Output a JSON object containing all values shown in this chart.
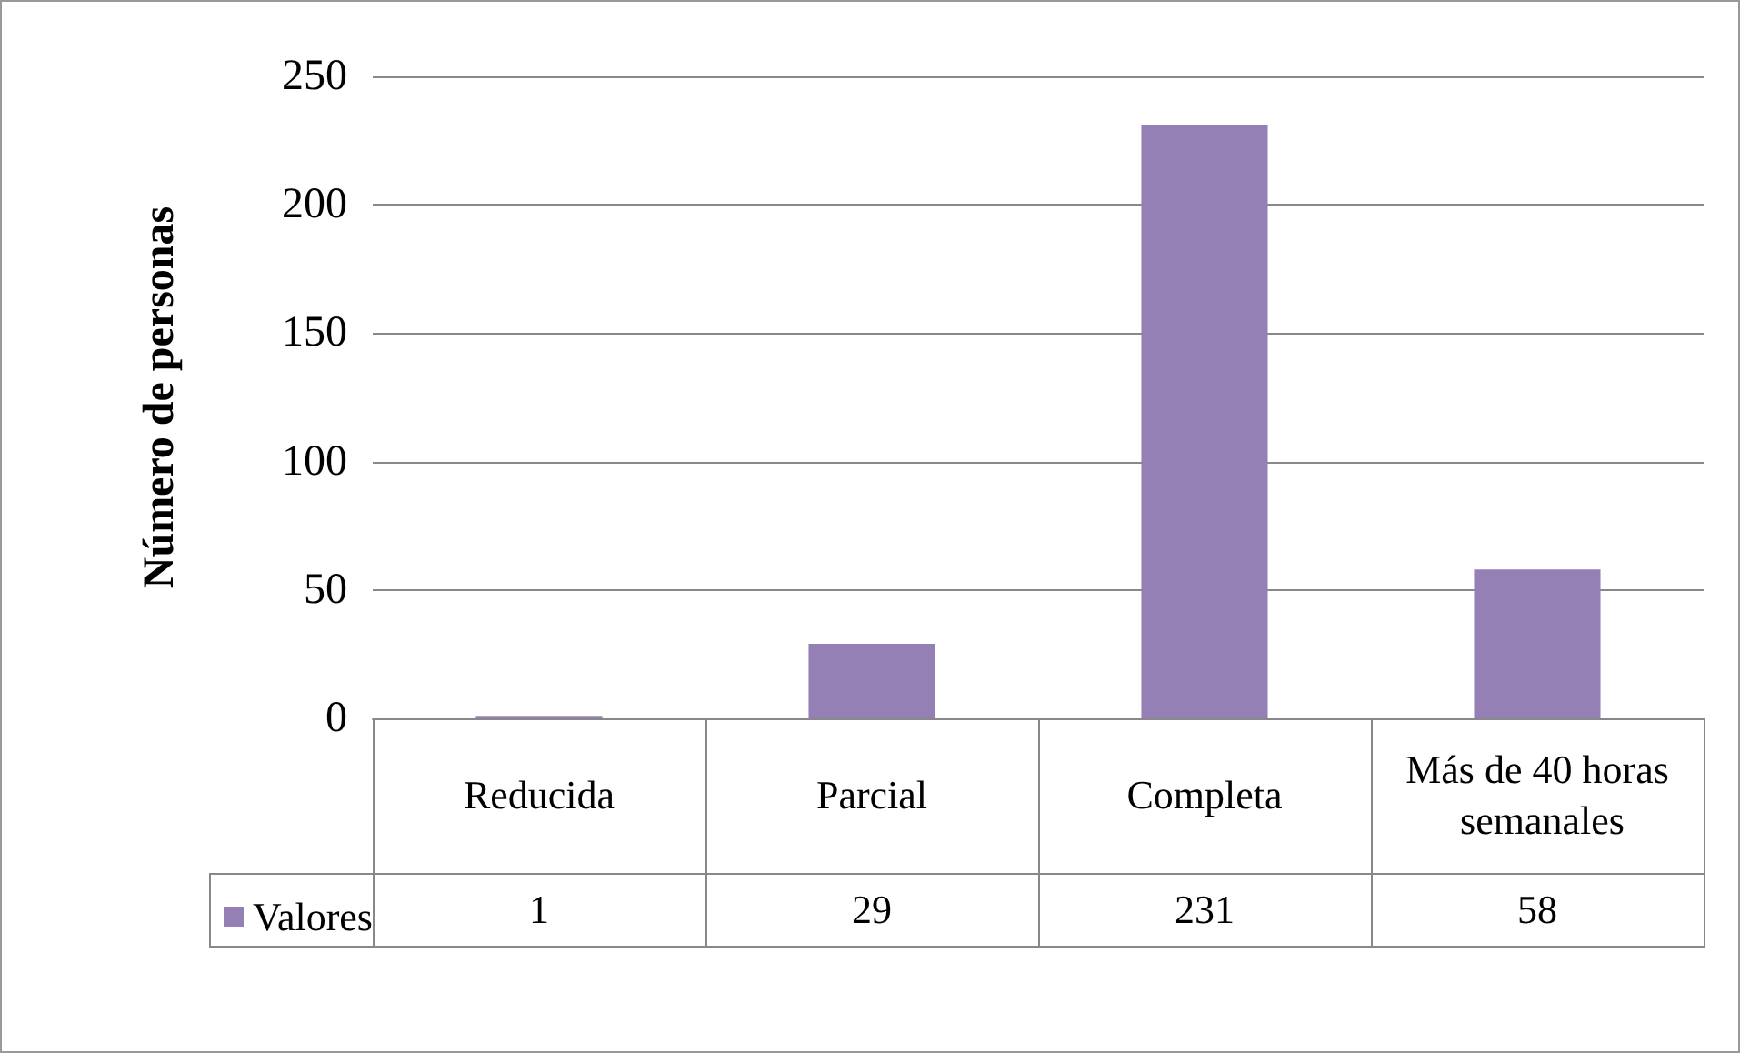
{
  "chart_data": {
    "type": "bar",
    "ylabel": "Número de personas",
    "categories": [
      "Reducida",
      "Parcial",
      "Completa",
      "Más de 40 horas semanales"
    ],
    "series": [
      {
        "name": "Valores",
        "color": "#9480b4",
        "values": [
          1,
          29,
          231,
          58
        ]
      }
    ],
    "ylim": [
      0,
      250
    ],
    "yticks": [
      0,
      50,
      100,
      150,
      200,
      250
    ],
    "grid": "y",
    "legend": "bottom left",
    "data_labels": true
  }
}
